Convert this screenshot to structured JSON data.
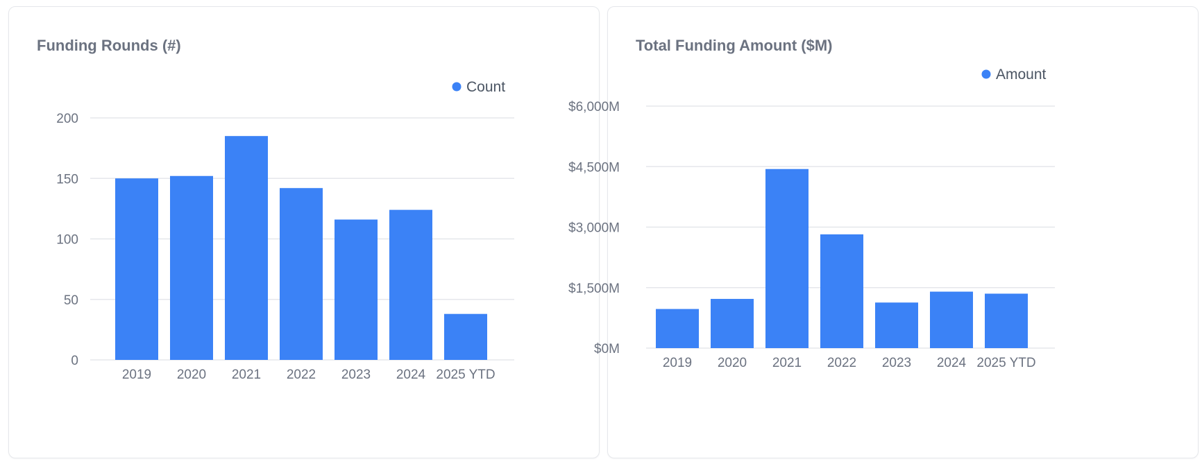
{
  "charts": [
    {
      "title": "Funding Rounds (#)",
      "chart_data": {
        "type": "bar",
        "title": "Funding Rounds (#)",
        "xlabel": "",
        "ylabel": "",
        "categories": [
          "2019",
          "2020",
          "2021",
          "2022",
          "2023",
          "2024",
          "2025 YTD"
        ],
        "series": [
          {
            "name": "Count",
            "values": [
              150,
              152,
              185,
              142,
              116,
              124,
              38
            ],
            "color": "#3b82f6"
          }
        ],
        "ylim": [
          0,
          200
        ],
        "yticks": [
          0,
          50,
          100,
          150,
          200
        ],
        "ytick_labels": [
          "0",
          "50",
          "100",
          "150",
          "200"
        ],
        "grid": true,
        "legend": "top-right"
      }
    },
    {
      "title": "Total Funding Amount ($M)",
      "chart_data": {
        "type": "bar",
        "title": "Total Funding Amount ($M)",
        "xlabel": "",
        "ylabel": "",
        "categories": [
          "2019",
          "2020",
          "2021",
          "2022",
          "2023",
          "2024",
          "2025 YTD"
        ],
        "series": [
          {
            "name": "Amount",
            "values": [
              970,
              1220,
              4440,
              2820,
              1130,
              1400,
              1350
            ],
            "color": "#3b82f6"
          }
        ],
        "ylim": [
          0,
          6000
        ],
        "yticks": [
          0,
          1500,
          3000,
          4500,
          6000
        ],
        "ytick_labels": [
          "$0M",
          "$1,500M",
          "$3,000M",
          "$4,500M",
          "$6,000M"
        ],
        "grid": true,
        "legend": "top-right"
      }
    }
  ]
}
